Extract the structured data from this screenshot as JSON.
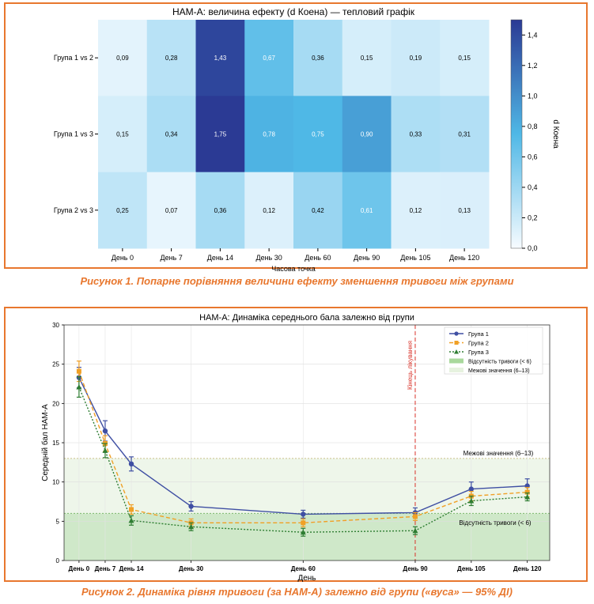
{
  "chart_data": [
    {
      "type": "heatmap",
      "title": "HAM-A: величина ефекту (d Коена) — тепловий графік",
      "xlabel": "Часова точка",
      "colorbar_label": "d Коена",
      "colorbar_ticks": [
        "0,0",
        "0,2",
        "0,4",
        "0,6",
        "0,8",
        "1,0",
        "1,2",
        "1,4"
      ],
      "vmin": 0,
      "vmax": 1.5,
      "x": [
        "День 0",
        "День 7",
        "День 14",
        "День 30",
        "День 60",
        "День 90",
        "День 105",
        "День 120"
      ],
      "y": [
        "Група 1 vs 2",
        "Група 1 vs 3",
        "Група 2 vs 3"
      ],
      "values": [
        [
          0.09,
          0.28,
          1.43,
          0.67,
          0.36,
          0.15,
          0.19,
          0.15
        ],
        [
          0.15,
          0.34,
          1.75,
          0.78,
          0.75,
          0.9,
          0.33,
          0.31
        ],
        [
          0.25,
          0.07,
          0.36,
          0.12,
          0.42,
          0.61,
          0.12,
          0.13
        ]
      ],
      "cell_labels": [
        [
          "0,09",
          "0,28",
          "1,43",
          "0,67",
          "0,36",
          "0,15",
          "0,19",
          "0,15"
        ],
        [
          "0,15",
          "0,34",
          "1,75",
          "0,78",
          "0,75",
          "0,90",
          "0,33",
          "0,31"
        ],
        [
          "0,25",
          "0,07",
          "0,36",
          "0,12",
          "0,42",
          "0,61",
          "0,12",
          "0,13"
        ]
      ],
      "colors": {
        "low": "#f7fbff",
        "mid": "#4fb8e6",
        "high": "#2b3a94"
      }
    },
    {
      "type": "line",
      "title": "HAM-A: Динаміка середнього бала залежно від групи",
      "xlabel": "День",
      "ylabel": "Середній бал HAM-A",
      "x": [
        0,
        7,
        14,
        30,
        60,
        90,
        105,
        120
      ],
      "x_tick_labels": [
        "День 0",
        "День 7",
        "День 14",
        "День 30",
        "День 60",
        "День 90",
        "День 105",
        "День 120"
      ],
      "xlim": [
        -4,
        126
      ],
      "ylim": [
        0,
        30
      ],
      "y_ticks": [
        "0",
        "5",
        "10",
        "15",
        "20",
        "25",
        "30"
      ],
      "series": [
        {
          "name": "Група 1",
          "color": "#3f4fa3",
          "marker": "circle",
          "linestyle": "solid",
          "values": [
            23.3,
            16.5,
            12.3,
            6.9,
            5.9,
            6.1,
            9.1,
            9.5
          ],
          "error": [
            1.3,
            1.3,
            0.9,
            0.6,
            0.5,
            0.6,
            0.9,
            0.9
          ]
        },
        {
          "name": "Група 2",
          "color": "#f0a026",
          "marker": "square",
          "linestyle": "dashed",
          "values": [
            24.1,
            14.9,
            6.5,
            4.8,
            4.8,
            5.6,
            8.2,
            8.7
          ],
          "error": [
            1.3,
            1.0,
            0.6,
            0.5,
            0.5,
            0.5,
            0.6,
            0.6
          ]
        },
        {
          "name": "Група 3",
          "color": "#2e7d32",
          "marker": "triangle",
          "linestyle": "dotted",
          "values": [
            22.1,
            14.0,
            5.1,
            4.3,
            3.6,
            3.8,
            7.6,
            8.1
          ],
          "error": [
            1.3,
            0.9,
            0.6,
            0.5,
            0.5,
            0.5,
            0.6,
            0.5
          ]
        }
      ],
      "legend": [
        "Група 1",
        "Група 2",
        "Група 3",
        "Відсутність тривоги (< 6)",
        "Межові значення (6–13)"
      ],
      "bands": [
        {
          "from": 0,
          "to": 6,
          "color": "#cfe8c9"
        },
        {
          "from": 6,
          "to": 13,
          "color": "#eef6ea"
        }
      ],
      "annotations": {
        "vline_label": "Кінець лікування",
        "vline_x": 90,
        "band_high_label": "Межові значення (6–13)",
        "band_low_label": "Відсутність тривоги (< 6)"
      }
    }
  ],
  "captions": {
    "fig1": "Рисунок 1. Попарне порівняння величини ефекту зменшення тривоги між групами",
    "fig2": "Рисунок 2. Динаміка рівня тривоги (за HAM-A) залежно від групи («вуса» — 95% ДІ)"
  }
}
